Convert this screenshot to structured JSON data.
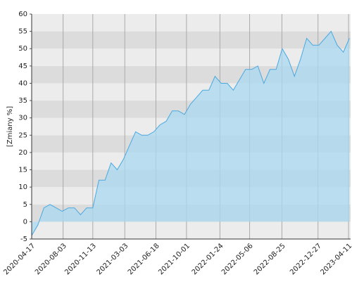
{
  "chart_data": {
    "type": "area",
    "y_label": "[Zmiany %]",
    "x": [
      "2020-04-17",
      "2020-05-08",
      "2020-05-29",
      "2020-06-19",
      "2020-07-10",
      "2020-07-31",
      "2020-08-21",
      "2020-09-11",
      "2020-10-02",
      "2020-10-23",
      "2020-11-13",
      "2020-12-04",
      "2020-12-25",
      "2021-01-15",
      "2021-02-05",
      "2021-02-26",
      "2021-03-19",
      "2021-04-09",
      "2021-04-30",
      "2021-05-21",
      "2021-06-11",
      "2021-07-02",
      "2021-07-23",
      "2021-08-13",
      "2021-09-03",
      "2021-09-24",
      "2021-10-15",
      "2021-11-05",
      "2021-11-26",
      "2021-12-17",
      "2022-01-07",
      "2022-01-28",
      "2022-02-18",
      "2022-03-11",
      "2022-04-01",
      "2022-04-22",
      "2022-05-13",
      "2022-06-03",
      "2022-06-24",
      "2022-07-15",
      "2022-08-05",
      "2022-08-26",
      "2022-09-16",
      "2022-10-07",
      "2022-10-28",
      "2022-11-18",
      "2022-12-09",
      "2022-12-30",
      "2023-01-20",
      "2023-02-10",
      "2023-03-03",
      "2023-03-24",
      "2023-04-14"
    ],
    "values": [
      -4,
      -1,
      4,
      5,
      4,
      3,
      4,
      4,
      2,
      4,
      4,
      12,
      12,
      17,
      15,
      18,
      22,
      26,
      25,
      25,
      26,
      28,
      29,
      32,
      32,
      31,
      34,
      36,
      38,
      38,
      42,
      40,
      40,
      38,
      41,
      44,
      44,
      45,
      40,
      44,
      44,
      50,
      47,
      42,
      47,
      53,
      51,
      51,
      53,
      55,
      51,
      49,
      53
    ],
    "color": "#4aa8e0",
    "fill": "#a9d9f0",
    "xlim": [
      "2020-04-17",
      "2023-04-18"
    ],
    "xticks": [
      "2020-04-17",
      "2020-08-03",
      "2020-11-13",
      "2021-03-03",
      "2021-06-18",
      "2021-10-01",
      "2022-01-24",
      "2022-05-06",
      "2022-08-25",
      "2022-12-27",
      "2023-04-11"
    ],
    "ylim": [
      -5,
      60
    ],
    "yticks": [
      -5,
      0,
      5,
      10,
      15,
      20,
      25,
      30,
      35,
      40,
      45,
      50,
      55,
      60
    ],
    "grid": true
  }
}
